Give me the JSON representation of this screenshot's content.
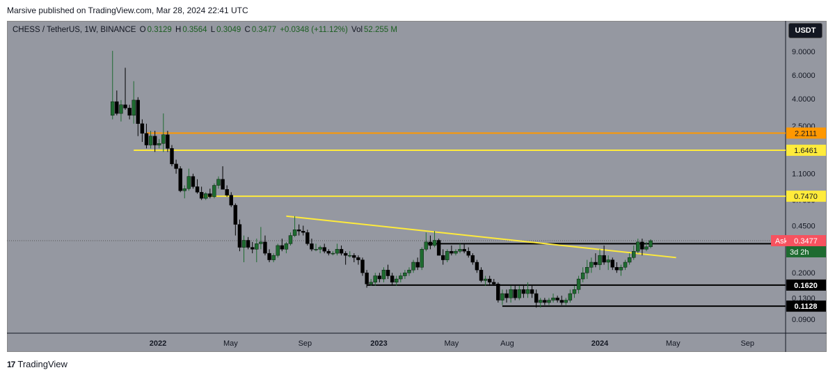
{
  "publisher_line": "Marsive published on TradingView.com, Mar 28, 2024 22:41 UTC",
  "legend": {
    "symbol": "CHESS / TetherUS, 1W, BINANCE",
    "o_label": "O",
    "o_val": "0.3129",
    "h_label": "H",
    "h_val": "0.3564",
    "l_label": "L",
    "l_val": "0.3049",
    "c_label": "C",
    "c_val": "0.3477",
    "change": "+0.0348 (+11.12%)",
    "vol_label": "Vol",
    "vol_val": "52.255 M"
  },
  "currency_button": "USDT",
  "footer": {
    "brand": "TradingView",
    "logo": "17"
  },
  "colors": {
    "background": "#9598a1",
    "up": "#1e6b30",
    "down": "#000000",
    "orange_level": "#ff9800",
    "yellow_level": "#ffeb3b",
    "ask": "#f7525f",
    "timer": "#1e6b30"
  },
  "chart_data": {
    "type": "candlestick",
    "scale": "log",
    "y_axis_labels": [
      "9.0000",
      "6.0000",
      "4.0000",
      "2.5000",
      "1.1000",
      "0.7000",
      "0.4500",
      "0.2000",
      "0.1300",
      "0.0900"
    ],
    "y_axis_values": [
      9.0,
      6.0,
      4.0,
      2.5,
      1.1,
      0.7,
      0.45,
      0.2,
      0.13,
      0.09
    ],
    "x_axis_labels": [
      "2022",
      "May",
      "Sep",
      "2023",
      "May",
      "Aug",
      "2024",
      "May",
      "Sep"
    ],
    "x_axis_dates": [
      "2022-01-01",
      "2022-05-01",
      "2022-09-01",
      "2023-01-01",
      "2023-05-01",
      "2023-08-01",
      "2024-01-01",
      "2024-05-01",
      "2024-09-01"
    ],
    "x_axis_bold": [
      true,
      false,
      false,
      true,
      false,
      false,
      true,
      false,
      false
    ],
    "horizontal_levels": [
      {
        "price": 2.2111,
        "label": "2.2111",
        "color": "#ff9800",
        "from": "2021-12-13"
      },
      {
        "price": 1.6461,
        "label": "1.6461",
        "color": "#ffeb3b",
        "from": "2021-11-22"
      },
      {
        "price": 0.747,
        "label": "0.7470",
        "color": "#ffeb3b",
        "from": "2022-03-14"
      }
    ],
    "support_resistance": [
      {
        "from": "2023-03-20",
        "price": 0.33,
        "label": ""
      },
      {
        "from": "2022-12-12",
        "price": 0.162,
        "label": "0.1620"
      },
      {
        "from": "2023-07-24",
        "price": 0.1128,
        "label": "0.1128"
      }
    ],
    "trendline": {
      "start": [
        "2022-08-01",
        0.53
      ],
      "end": [
        "2024-05-06",
        0.26
      ]
    },
    "current_price": {
      "value": 0.3477,
      "label": "0.3477",
      "ask_label": "Ask",
      "countdown": "3d 2h"
    },
    "candles": [
      [
        "2021-10-18",
        3.0,
        9.1,
        2.8,
        3.8
      ],
      [
        "2021-10-25",
        3.8,
        4.6,
        3.0,
        3.1
      ],
      [
        "2021-11-01",
        3.1,
        3.9,
        2.7,
        3.6
      ],
      [
        "2021-11-08",
        3.6,
        6.8,
        3.3,
        3.4
      ],
      [
        "2021-11-15",
        3.4,
        3.6,
        2.8,
        3.0
      ],
      [
        "2021-11-22",
        3.0,
        5.4,
        2.6,
        3.9
      ],
      [
        "2021-11-29",
        3.9,
        4.1,
        2.1,
        2.6
      ],
      [
        "2021-12-06",
        2.6,
        2.8,
        1.9,
        2.2
      ],
      [
        "2021-12-13",
        2.2,
        2.6,
        1.7,
        1.8
      ],
      [
        "2021-12-20",
        1.8,
        2.3,
        1.7,
        2.1
      ],
      [
        "2021-12-27",
        2.1,
        2.3,
        1.6,
        1.8
      ],
      [
        "2022-01-03",
        1.8,
        2.0,
        1.7,
        1.85
      ],
      [
        "2022-01-10",
        1.85,
        3.1,
        1.6,
        2.15
      ],
      [
        "2022-01-17",
        2.15,
        2.3,
        1.6,
        1.7
      ],
      [
        "2022-01-24",
        1.7,
        1.8,
        1.25,
        1.3
      ],
      [
        "2022-01-31",
        1.3,
        1.4,
        1.1,
        1.2
      ],
      [
        "2022-02-07",
        1.2,
        1.25,
        0.8,
        0.82
      ],
      [
        "2022-02-14",
        0.82,
        0.9,
        0.72,
        0.85
      ],
      [
        "2022-02-21",
        0.85,
        1.2,
        0.82,
        1.05
      ],
      [
        "2022-02-28",
        1.05,
        1.1,
        0.85,
        0.88
      ],
      [
        "2022-03-07",
        0.88,
        1.0,
        0.78,
        0.8
      ],
      [
        "2022-03-14",
        0.8,
        0.88,
        0.7,
        0.72
      ],
      [
        "2022-03-21",
        0.72,
        0.8,
        0.7,
        0.78
      ],
      [
        "2022-03-28",
        0.78,
        0.85,
        0.72,
        0.74
      ],
      [
        "2022-04-04",
        0.74,
        0.93,
        0.72,
        0.9
      ],
      [
        "2022-04-11",
        0.9,
        1.05,
        0.85,
        1.0
      ],
      [
        "2022-04-18",
        1.0,
        1.25,
        0.9,
        0.84
      ],
      [
        "2022-04-25",
        0.84,
        0.9,
        0.74,
        0.76
      ],
      [
        "2022-05-02",
        0.76,
        0.8,
        0.62,
        0.64
      ],
      [
        "2022-05-09",
        0.64,
        0.66,
        0.38,
        0.46
      ],
      [
        "2022-05-16",
        0.46,
        0.5,
        0.29,
        0.31
      ],
      [
        "2022-05-23",
        0.31,
        0.38,
        0.24,
        0.35
      ],
      [
        "2022-05-30",
        0.35,
        0.37,
        0.3,
        0.31
      ],
      [
        "2022-06-06",
        0.31,
        0.34,
        0.28,
        0.3
      ],
      [
        "2022-06-13",
        0.3,
        0.36,
        0.24,
        0.33
      ],
      [
        "2022-06-20",
        0.33,
        0.44,
        0.3,
        0.34
      ],
      [
        "2022-06-27",
        0.34,
        0.38,
        0.27,
        0.28
      ],
      [
        "2022-07-04",
        0.28,
        0.3,
        0.24,
        0.25
      ],
      [
        "2022-07-11",
        0.25,
        0.28,
        0.24,
        0.27
      ],
      [
        "2022-07-18",
        0.27,
        0.33,
        0.26,
        0.32
      ],
      [
        "2022-07-25",
        0.32,
        0.36,
        0.29,
        0.3
      ],
      [
        "2022-08-01",
        0.3,
        0.34,
        0.28,
        0.33
      ],
      [
        "2022-08-08",
        0.33,
        0.4,
        0.32,
        0.38
      ],
      [
        "2022-08-15",
        0.38,
        0.53,
        0.37,
        0.42
      ],
      [
        "2022-08-22",
        0.42,
        0.46,
        0.38,
        0.41
      ],
      [
        "2022-08-29",
        0.41,
        0.45,
        0.38,
        0.4
      ],
      [
        "2022-09-05",
        0.4,
        0.42,
        0.32,
        0.33
      ],
      [
        "2022-09-12",
        0.33,
        0.36,
        0.29,
        0.3
      ],
      [
        "2022-09-19",
        0.3,
        0.33,
        0.29,
        0.3
      ],
      [
        "2022-09-26",
        0.3,
        0.32,
        0.28,
        0.31
      ],
      [
        "2022-10-03",
        0.31,
        0.33,
        0.28,
        0.29
      ],
      [
        "2022-10-10",
        0.29,
        0.3,
        0.27,
        0.28
      ],
      [
        "2022-10-17",
        0.28,
        0.29,
        0.27,
        0.28
      ],
      [
        "2022-10-24",
        0.28,
        0.33,
        0.27,
        0.3
      ],
      [
        "2022-10-31",
        0.3,
        0.32,
        0.27,
        0.28
      ],
      [
        "2022-11-07",
        0.28,
        0.29,
        0.23,
        0.27
      ],
      [
        "2022-11-14",
        0.27,
        0.29,
        0.26,
        0.27
      ],
      [
        "2022-11-21",
        0.27,
        0.28,
        0.24,
        0.26
      ],
      [
        "2022-11-28",
        0.26,
        0.27,
        0.23,
        0.25
      ],
      [
        "2022-12-05",
        0.25,
        0.26,
        0.19,
        0.2
      ],
      [
        "2022-12-12",
        0.2,
        0.21,
        0.155,
        0.165
      ],
      [
        "2022-12-19",
        0.165,
        0.18,
        0.16,
        0.17
      ],
      [
        "2022-12-26",
        0.17,
        0.2,
        0.16,
        0.19
      ],
      [
        "2023-01-02",
        0.19,
        0.2,
        0.17,
        0.18
      ],
      [
        "2023-01-09",
        0.18,
        0.22,
        0.17,
        0.21
      ],
      [
        "2023-01-16",
        0.21,
        0.23,
        0.18,
        0.19
      ],
      [
        "2023-01-23",
        0.19,
        0.2,
        0.16,
        0.17
      ],
      [
        "2023-01-30",
        0.17,
        0.19,
        0.16,
        0.18
      ],
      [
        "2023-02-06",
        0.18,
        0.2,
        0.17,
        0.19
      ],
      [
        "2023-02-13",
        0.19,
        0.21,
        0.18,
        0.2
      ],
      [
        "2023-02-20",
        0.2,
        0.22,
        0.19,
        0.21
      ],
      [
        "2023-02-27",
        0.21,
        0.25,
        0.2,
        0.24
      ],
      [
        "2023-03-06",
        0.24,
        0.26,
        0.21,
        0.22
      ],
      [
        "2023-03-13",
        0.22,
        0.31,
        0.21,
        0.3
      ],
      [
        "2023-03-20",
        0.3,
        0.4,
        0.29,
        0.34
      ],
      [
        "2023-03-27",
        0.34,
        0.38,
        0.3,
        0.32
      ],
      [
        "2023-04-03",
        0.32,
        0.41,
        0.31,
        0.35
      ],
      [
        "2023-04-10",
        0.35,
        0.36,
        0.27,
        0.27
      ],
      [
        "2023-04-17",
        0.27,
        0.3,
        0.23,
        0.25
      ],
      [
        "2023-04-24",
        0.25,
        0.3,
        0.24,
        0.29
      ],
      [
        "2023-05-01",
        0.29,
        0.32,
        0.27,
        0.28
      ],
      [
        "2023-05-08",
        0.28,
        0.3,
        0.27,
        0.29
      ],
      [
        "2023-05-15",
        0.29,
        0.33,
        0.28,
        0.3
      ],
      [
        "2023-05-22",
        0.3,
        0.33,
        0.28,
        0.29
      ],
      [
        "2023-05-29",
        0.29,
        0.31,
        0.26,
        0.27
      ],
      [
        "2023-06-05",
        0.27,
        0.28,
        0.23,
        0.24
      ],
      [
        "2023-06-12",
        0.24,
        0.25,
        0.2,
        0.21
      ],
      [
        "2023-06-19",
        0.21,
        0.22,
        0.17,
        0.175
      ],
      [
        "2023-06-26",
        0.175,
        0.19,
        0.16,
        0.18
      ],
      [
        "2023-07-03",
        0.18,
        0.19,
        0.16,
        0.17
      ],
      [
        "2023-07-10",
        0.17,
        0.18,
        0.16,
        0.165
      ],
      [
        "2023-07-17",
        0.165,
        0.17,
        0.12,
        0.125
      ],
      [
        "2023-07-24",
        0.125,
        0.15,
        0.115,
        0.14
      ],
      [
        "2023-07-31",
        0.14,
        0.15,
        0.12,
        0.13
      ],
      [
        "2023-08-07",
        0.13,
        0.16,
        0.12,
        0.15
      ],
      [
        "2023-08-14",
        0.15,
        0.16,
        0.125,
        0.13
      ],
      [
        "2023-08-21",
        0.13,
        0.16,
        0.125,
        0.15
      ],
      [
        "2023-08-28",
        0.15,
        0.16,
        0.13,
        0.14
      ],
      [
        "2023-09-04",
        0.14,
        0.17,
        0.13,
        0.15
      ],
      [
        "2023-09-11",
        0.15,
        0.16,
        0.13,
        0.14
      ],
      [
        "2023-09-18",
        0.14,
        0.15,
        0.11,
        0.12
      ],
      [
        "2023-09-25",
        0.12,
        0.13,
        0.11,
        0.125
      ],
      [
        "2023-10-02",
        0.125,
        0.13,
        0.115,
        0.12
      ],
      [
        "2023-10-09",
        0.12,
        0.13,
        0.115,
        0.125
      ],
      [
        "2023-10-16",
        0.125,
        0.14,
        0.12,
        0.13
      ],
      [
        "2023-10-23",
        0.13,
        0.135,
        0.12,
        0.125
      ],
      [
        "2023-10-30",
        0.125,
        0.135,
        0.115,
        0.12
      ],
      [
        "2023-11-06",
        0.12,
        0.13,
        0.115,
        0.125
      ],
      [
        "2023-11-13",
        0.125,
        0.15,
        0.12,
        0.14
      ],
      [
        "2023-11-20",
        0.14,
        0.16,
        0.13,
        0.15
      ],
      [
        "2023-11-27",
        0.15,
        0.19,
        0.14,
        0.18
      ],
      [
        "2023-12-04",
        0.18,
        0.22,
        0.17,
        0.2
      ],
      [
        "2023-12-11",
        0.2,
        0.25,
        0.18,
        0.22
      ],
      [
        "2023-12-18",
        0.22,
        0.26,
        0.2,
        0.24
      ],
      [
        "2023-12-25",
        0.24,
        0.28,
        0.22,
        0.23
      ],
      [
        "2024-01-01",
        0.23,
        0.3,
        0.21,
        0.27
      ],
      [
        "2024-01-08",
        0.27,
        0.32,
        0.23,
        0.24
      ],
      [
        "2024-01-15",
        0.24,
        0.27,
        0.21,
        0.25
      ],
      [
        "2024-01-22",
        0.25,
        0.26,
        0.21,
        0.22
      ],
      [
        "2024-01-29",
        0.22,
        0.24,
        0.2,
        0.21
      ],
      [
        "2024-02-05",
        0.21,
        0.23,
        0.19,
        0.22
      ],
      [
        "2024-02-12",
        0.22,
        0.25,
        0.21,
        0.24
      ],
      [
        "2024-02-19",
        0.24,
        0.28,
        0.23,
        0.26
      ],
      [
        "2024-02-26",
        0.26,
        0.32,
        0.25,
        0.29
      ],
      [
        "2024-03-04",
        0.29,
        0.36,
        0.28,
        0.34
      ],
      [
        "2024-03-11",
        0.34,
        0.36,
        0.27,
        0.3
      ],
      [
        "2024-03-18",
        0.3,
        0.34,
        0.29,
        0.3129
      ],
      [
        "2024-03-25",
        0.3129,
        0.3564,
        0.3049,
        0.3477
      ]
    ]
  }
}
